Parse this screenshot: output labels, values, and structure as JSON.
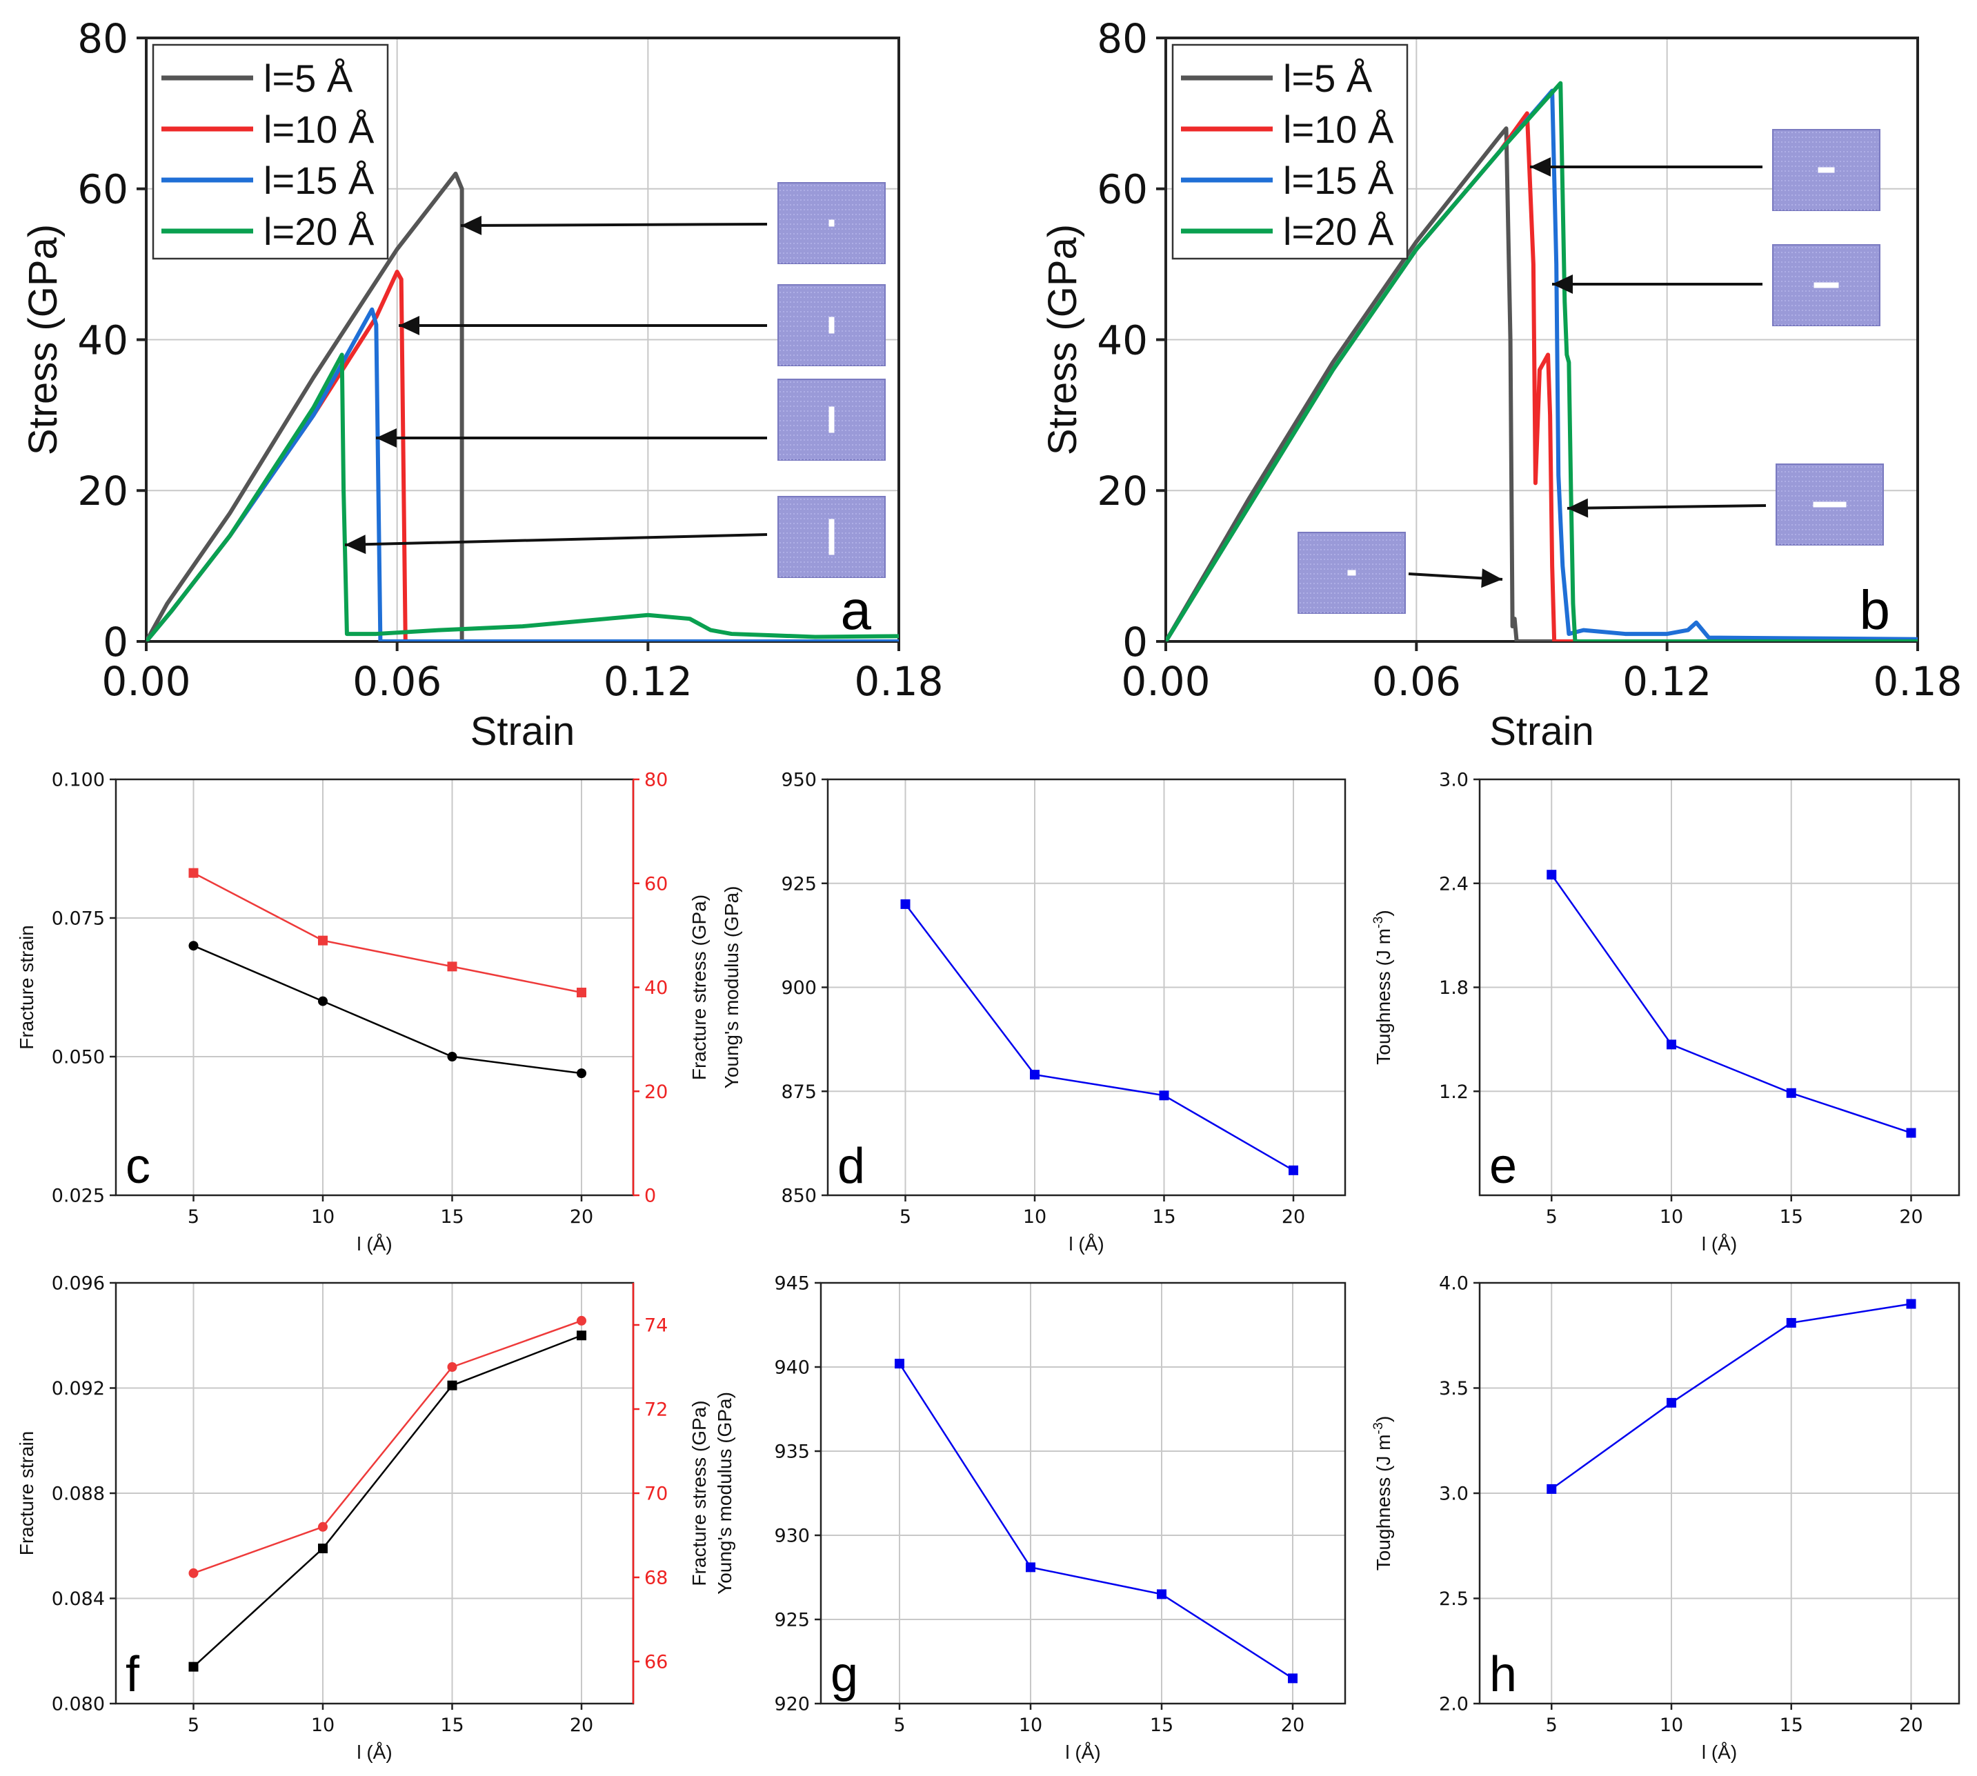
{
  "chart_data": [
    {
      "panel": "a",
      "type": "line",
      "xlabel": "Strain",
      "ylabel": "Stress (GPa)",
      "xlim": [
        0,
        0.18
      ],
      "ylim": [
        0,
        80
      ],
      "xticks": [
        "0.00",
        "0.06",
        "0.12",
        "0.18"
      ],
      "xtick_values": [
        0,
        0.06,
        0.12,
        0.18
      ],
      "yticks": [
        "0",
        "20",
        "40",
        "60",
        "80"
      ],
      "ytick_values": [
        0,
        20,
        40,
        60,
        80
      ],
      "legend": [
        "l=5 Å",
        "l=10 Å",
        "l=15 Å",
        "l=20 Å"
      ],
      "colors": [
        "#555555",
        "#ee2a2a",
        "#1f6fd6",
        "#0aa050"
      ],
      "series": [
        {
          "name": "l=5 Å",
          "x": [
            0,
            0.005,
            0.02,
            0.04,
            0.06,
            0.074,
            0.0755,
            0.0755,
            0.18
          ],
          "y": [
            0,
            5,
            17,
            35,
            52,
            62,
            60,
            0,
            0
          ]
        },
        {
          "name": "l=10 Å",
          "x": [
            0,
            0.006,
            0.02,
            0.04,
            0.055,
            0.06,
            0.061,
            0.062,
            0.18
          ],
          "y": [
            0,
            4,
            14,
            30,
            43,
            49,
            48,
            0,
            0
          ]
        },
        {
          "name": "l=15 Å",
          "x": [
            0,
            0.006,
            0.02,
            0.04,
            0.05,
            0.054,
            0.055,
            0.056,
            0.18
          ],
          "y": [
            0,
            4,
            14,
            30,
            40,
            44,
            42,
            0,
            0
          ]
        },
        {
          "name": "l=20 Å",
          "x": [
            0,
            0.006,
            0.02,
            0.04,
            0.0468,
            0.0472,
            0.048,
            0.055,
            0.07,
            0.09,
            0.1,
            0.11,
            0.12,
            0.13,
            0.135,
            0.14,
            0.15,
            0.16,
            0.18
          ],
          "y": [
            0,
            4,
            14,
            31,
            38,
            20,
            1,
            1,
            1.5,
            2,
            2.5,
            3,
            3.5,
            3,
            1.5,
            1,
            0.8,
            0.6,
            0.7
          ]
        }
      ],
      "panel_label": "a"
    },
    {
      "panel": "b",
      "type": "line",
      "xlabel": "Strain",
      "ylabel": "Stress (GPa)",
      "xlim": [
        0,
        0.18
      ],
      "ylim": [
        0,
        80
      ],
      "xticks": [
        "0.00",
        "0.06",
        "0.12",
        "0.18"
      ],
      "xtick_values": [
        0,
        0.06,
        0.12,
        0.18
      ],
      "yticks": [
        "0",
        "20",
        "40",
        "60",
        "80"
      ],
      "ytick_values": [
        0,
        20,
        40,
        60,
        80
      ],
      "legend": [
        "l=5 Å",
        "l=10 Å",
        "l=15 Å",
        "l=20 Å"
      ],
      "colors": [
        "#555555",
        "#ee2a2a",
        "#1f6fd6",
        "#0aa050"
      ],
      "series": [
        {
          "name": "l=5 Å",
          "x": [
            0,
            0.02,
            0.04,
            0.06,
            0.08,
            0.0815,
            0.0825,
            0.083,
            0.0835,
            0.084,
            0.18
          ],
          "y": [
            0,
            19,
            37,
            53,
            67,
            68,
            40,
            2,
            3,
            0,
            0
          ]
        },
        {
          "name": "l=10 Å",
          "x": [
            0,
            0.02,
            0.04,
            0.06,
            0.08,
            0.0865,
            0.088,
            0.0885,
            0.0895,
            0.0905,
            0.0915,
            0.092,
            0.0925,
            0.093,
            0.18
          ],
          "y": [
            0,
            18,
            36,
            52,
            65,
            70,
            50,
            21,
            36,
            37,
            38,
            30,
            10,
            0,
            0
          ]
        },
        {
          "name": "l=15 Å",
          "x": [
            0,
            0.02,
            0.04,
            0.06,
            0.08,
            0.0925,
            0.0935,
            0.094,
            0.095,
            0.0965,
            0.1,
            0.11,
            0.12,
            0.125,
            0.127,
            0.13,
            0.18
          ],
          "y": [
            0,
            18,
            36,
            52,
            65,
            73,
            50,
            22,
            10,
            1,
            1.5,
            1,
            1,
            1.5,
            2.5,
            0.5,
            0.3
          ]
        },
        {
          "name": "l=20 Å",
          "x": [
            0,
            0.02,
            0.04,
            0.06,
            0.08,
            0.0945,
            0.0955,
            0.096,
            0.0965,
            0.097,
            0.0975,
            0.098,
            0.18
          ],
          "y": [
            0,
            18,
            36,
            52,
            65,
            74,
            45,
            38,
            37,
            20,
            5,
            0,
            0
          ]
        }
      ],
      "panel_label": "b"
    },
    {
      "panel": "c",
      "type": "line",
      "xlabel": "l (Å)",
      "ylabel": "Fracture strain",
      "ylabel_right": "Fracture stress (GPa)",
      "categories": [
        5,
        10,
        15,
        20
      ],
      "xticks": [
        "5",
        "10",
        "15",
        "20"
      ],
      "xlim": [
        2,
        22
      ],
      "ylim": [
        0.025,
        0.1
      ],
      "yticks": [
        "0.025",
        "0.050",
        "0.075",
        "0.100"
      ],
      "ytick_values": [
        0.025,
        0.05,
        0.075,
        0.1
      ],
      "ylim_right": [
        0,
        80
      ],
      "yticks_right": [
        "0",
        "20",
        "40",
        "60",
        "80"
      ],
      "ytick_values_right": [
        0,
        20,
        40,
        60,
        80
      ],
      "series": [
        {
          "name": "Fracture strain",
          "axis": "left",
          "color": "#000000",
          "marker": "circle",
          "values": [
            0.07,
            0.06,
            0.05,
            0.047
          ]
        },
        {
          "name": "Fracture stress",
          "axis": "right",
          "color": "#ee3a3a",
          "marker": "square",
          "values": [
            62,
            49,
            44,
            39
          ]
        }
      ],
      "panel_label": "c"
    },
    {
      "panel": "d",
      "type": "line",
      "xlabel": "l (Å)",
      "ylabel": "Young's modulus (GPa)",
      "categories": [
        5,
        10,
        15,
        20
      ],
      "xticks": [
        "5",
        "10",
        "15",
        "20"
      ],
      "xlim": [
        2,
        22
      ],
      "ylim": [
        850,
        950
      ],
      "yticks": [
        "850",
        "875",
        "900",
        "925",
        "950"
      ],
      "ytick_values": [
        850,
        875,
        900,
        925,
        950
      ],
      "series": [
        {
          "name": "Young's modulus",
          "color": "#0000ee",
          "marker": "square",
          "values": [
            920,
            879,
            874,
            856
          ]
        }
      ],
      "panel_label": "d"
    },
    {
      "panel": "e",
      "type": "line",
      "xlabel": "l (Å)",
      "ylabel": "Toughness (J m-3)",
      "categories": [
        5,
        10,
        15,
        20
      ],
      "xticks": [
        "5",
        "10",
        "15",
        "20"
      ],
      "xlim": [
        2,
        22
      ],
      "ylim": [
        0.6,
        3.0
      ],
      "yticks": [
        "1.2",
        "1.8",
        "2.4",
        "3.0"
      ],
      "ytick_values": [
        1.2,
        1.8,
        2.4,
        3.0
      ],
      "series": [
        {
          "name": "Toughness",
          "color": "#0000ee",
          "marker": "square",
          "values": [
            2.45,
            1.47,
            1.19,
            0.96
          ]
        }
      ],
      "panel_label": "e"
    },
    {
      "panel": "f",
      "type": "line",
      "xlabel": "l (Å)",
      "ylabel": "Fracture strain",
      "ylabel_right": "Fracture stress (GPa)",
      "categories": [
        5,
        10,
        15,
        20
      ],
      "xticks": [
        "5",
        "10",
        "15",
        "20"
      ],
      "xlim": [
        2,
        22
      ],
      "ylim": [
        0.08,
        0.096
      ],
      "yticks": [
        "0.080",
        "0.084",
        "0.088",
        "0.092",
        "0.096"
      ],
      "ytick_values": [
        0.08,
        0.084,
        0.088,
        0.092,
        0.096
      ],
      "ylim_right": [
        65,
        75
      ],
      "yticks_right": [
        "66",
        "68",
        "70",
        "72",
        "74"
      ],
      "ytick_values_right": [
        66,
        68,
        70,
        72,
        74
      ],
      "series": [
        {
          "name": "Fracture strain",
          "axis": "left",
          "color": "#000000",
          "marker": "square",
          "values": [
            0.0814,
            0.0859,
            0.0921,
            0.094
          ]
        },
        {
          "name": "Fracture stress",
          "axis": "right",
          "color": "#ee3a3a",
          "marker": "circle",
          "values": [
            68.1,
            69.2,
            73.0,
            74.1
          ]
        }
      ],
      "panel_label": "f"
    },
    {
      "panel": "g",
      "type": "line",
      "xlabel": "l (Å)",
      "ylabel": "Young's modulus (GPa)",
      "categories": [
        5,
        10,
        15,
        20
      ],
      "xticks": [
        "5",
        "10",
        "15",
        "20"
      ],
      "xlim": [
        2,
        22
      ],
      "ylim": [
        920,
        945
      ],
      "yticks": [
        "920",
        "925",
        "930",
        "935",
        "940",
        "945"
      ],
      "ytick_values": [
        920,
        925,
        930,
        935,
        940,
        945
      ],
      "series": [
        {
          "name": "Young's modulus",
          "color": "#0000ee",
          "marker": "square",
          "values": [
            940.2,
            928.1,
            926.5,
            921.5
          ]
        }
      ],
      "panel_label": "g"
    },
    {
      "panel": "h",
      "type": "line",
      "xlabel": "l (Å)",
      "ylabel": "Toughness (J m-3)",
      "categories": [
        5,
        10,
        15,
        20
      ],
      "xticks": [
        "5",
        "10",
        "15",
        "20"
      ],
      "xlim": [
        2,
        22
      ],
      "ylim": [
        2.0,
        4.0
      ],
      "yticks": [
        "2.0",
        "2.5",
        "3.0",
        "3.5",
        "4.0"
      ],
      "ytick_values": [
        2.0,
        2.5,
        3.0,
        3.5,
        4.0
      ],
      "series": [
        {
          "name": "Toughness",
          "color": "#0000ee",
          "marker": "square",
          "values": [
            3.02,
            3.43,
            3.81,
            3.9
          ]
        }
      ],
      "panel_label": "h"
    }
  ]
}
